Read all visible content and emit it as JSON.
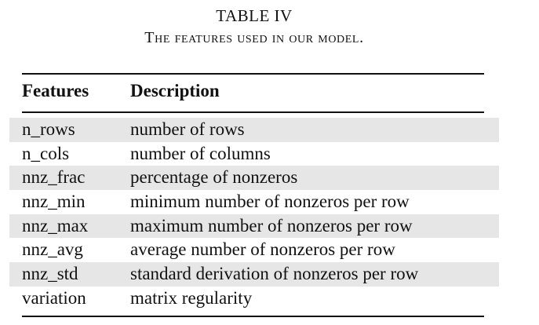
{
  "caption": {
    "label": "TABLE IV",
    "title": "The features used in our model."
  },
  "table": {
    "headers": {
      "features": "Features",
      "description": "Description"
    },
    "rows": [
      {
        "feature": "n_rows",
        "description": "number of rows"
      },
      {
        "feature": "n_cols",
        "description": "number of columns"
      },
      {
        "feature": "nnz_frac",
        "description": "percentage of nonzeros"
      },
      {
        "feature": "nnz_min",
        "description": "minimum number of nonzeros per row"
      },
      {
        "feature": "nnz_max",
        "description": "maximum number of nonzeros per row"
      },
      {
        "feature": "nnz_avg",
        "description": "average number of nonzeros per row"
      },
      {
        "feature": "nnz_std",
        "description": "standard derivation of nonzeros per row"
      },
      {
        "feature": "variation",
        "description": "matrix regularity"
      }
    ],
    "shaded_row_color": "#e6e6e6"
  }
}
